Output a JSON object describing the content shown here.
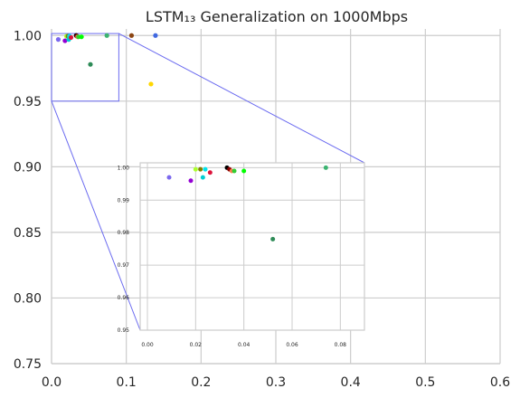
{
  "chart_data": [
    {
      "type": "scatter",
      "title": "LSTM₁₃ Generalization on 1000Mbps",
      "xlabel": "",
      "ylabel": "",
      "xlim": [
        0,
        0.6
      ],
      "ylim": [
        0.75,
        1.005
      ],
      "xticks": [
        "0.0",
        "0.1",
        "0.2",
        "0.3",
        "0.4",
        "0.5",
        "0.6"
      ],
      "yticks": [
        "0.75",
        "0.80",
        "0.85",
        "0.90",
        "0.95",
        "1.00"
      ],
      "grid": true,
      "points": [
        {
          "x": 0.009,
          "y": 0.997,
          "color": "#7b68ee"
        },
        {
          "x": 0.018,
          "y": 0.996,
          "color": "#9400d3"
        },
        {
          "x": 0.02,
          "y": 0.9995,
          "color": "#adff2f"
        },
        {
          "x": 0.022,
          "y": 0.9995,
          "color": "#808000"
        },
        {
          "x": 0.023,
          "y": 0.997,
          "color": "#00ced1"
        },
        {
          "x": 0.024,
          "y": 0.9995,
          "color": "#00e5ee"
        },
        {
          "x": 0.026,
          "y": 0.9985,
          "color": "#dc143c"
        },
        {
          "x": 0.033,
          "y": 1.0,
          "color": "#000000"
        },
        {
          "x": 0.034,
          "y": 0.9995,
          "color": "#8b0000"
        },
        {
          "x": 0.035,
          "y": 0.999,
          "color": "#ff7f50"
        },
        {
          "x": 0.036,
          "y": 0.999,
          "color": "#32cd32"
        },
        {
          "x": 0.04,
          "y": 0.999,
          "color": "#00ff00"
        },
        {
          "x": 0.052,
          "y": 0.978,
          "color": "#2e8b57"
        },
        {
          "x": 0.074,
          "y": 1.0,
          "color": "#3cb371"
        },
        {
          "x": 0.107,
          "y": 1.0,
          "color": "#8b4513"
        },
        {
          "x": 0.133,
          "y": 0.963,
          "color": "#ffd700"
        },
        {
          "x": 0.139,
          "y": 1.0,
          "color": "#4169e1"
        }
      ]
    },
    {
      "type": "scatter",
      "title": "",
      "xlabel": "",
      "ylabel": "",
      "xlim": [
        -0.003,
        0.09
      ],
      "ylim": [
        0.95,
        1.0015
      ],
      "xticks": [
        "0.00",
        "0.02",
        "0.04",
        "0.06",
        "0.08"
      ],
      "yticks": [
        "0.95",
        "0.96",
        "0.97",
        "0.98",
        "0.99",
        "1.00"
      ],
      "grid": true,
      "points": [
        {
          "x": 0.009,
          "y": 0.997,
          "color": "#7b68ee"
        },
        {
          "x": 0.018,
          "y": 0.996,
          "color": "#9400d3"
        },
        {
          "x": 0.02,
          "y": 0.9995,
          "color": "#adff2f"
        },
        {
          "x": 0.022,
          "y": 0.9995,
          "color": "#808000"
        },
        {
          "x": 0.023,
          "y": 0.997,
          "color": "#00ced1"
        },
        {
          "x": 0.024,
          "y": 0.9995,
          "color": "#00e5ee"
        },
        {
          "x": 0.026,
          "y": 0.9985,
          "color": "#dc143c"
        },
        {
          "x": 0.033,
          "y": 1.0,
          "color": "#000000"
        },
        {
          "x": 0.034,
          "y": 0.9995,
          "color": "#8b0000"
        },
        {
          "x": 0.035,
          "y": 0.999,
          "color": "#ff7f50"
        },
        {
          "x": 0.036,
          "y": 0.999,
          "color": "#32cd32"
        },
        {
          "x": 0.04,
          "y": 0.999,
          "color": "#00ff00"
        },
        {
          "x": 0.052,
          "y": 0.978,
          "color": "#2e8b57"
        },
        {
          "x": 0.074,
          "y": 1.0,
          "color": "#3cb371"
        }
      ]
    }
  ]
}
